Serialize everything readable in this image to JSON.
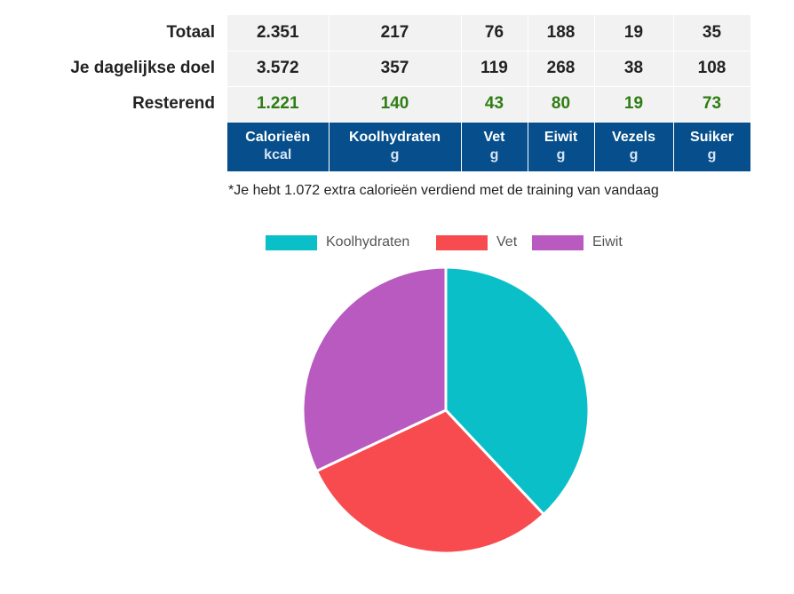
{
  "table": {
    "rows": [
      {
        "label": "Totaal",
        "values": [
          "2.351",
          "217",
          "76",
          "188",
          "19",
          "35"
        ],
        "style": "normal"
      },
      {
        "label": "Je dagelijkse doel",
        "values": [
          "3.572",
          "357",
          "119",
          "268",
          "38",
          "108"
        ],
        "style": "normal"
      },
      {
        "label": "Resterend",
        "values": [
          "1.221",
          "140",
          "43",
          "80",
          "19",
          "73"
        ],
        "style": "green"
      }
    ],
    "columns": [
      {
        "name": "Calorieën",
        "unit": "kcal"
      },
      {
        "name": "Koolhydraten",
        "unit": "g"
      },
      {
        "name": "Vet",
        "unit": "g"
      },
      {
        "name": "Eiwit",
        "unit": "g"
      },
      {
        "name": "Vezels",
        "unit": "g"
      },
      {
        "name": "Suiker",
        "unit": "g"
      }
    ]
  },
  "footnote": "*Je hebt 1.072 extra calorieën verdiend met de training van vandaag",
  "colors": {
    "header_bg": "#064f8c",
    "remaining_text": "#2e7d14",
    "carbs": "#0bbfc9",
    "fat": "#f74b4f",
    "protein": "#b85ac0"
  },
  "chart_data": {
    "type": "pie",
    "legend_position": "top",
    "series": [
      {
        "name": "Koolhydraten",
        "value": 38,
        "color": "#0bbfc9"
      },
      {
        "name": "Vet",
        "value": 30,
        "color": "#f74b4f"
      },
      {
        "name": "Eiwit",
        "value": 32,
        "color": "#b85ac0"
      }
    ]
  }
}
